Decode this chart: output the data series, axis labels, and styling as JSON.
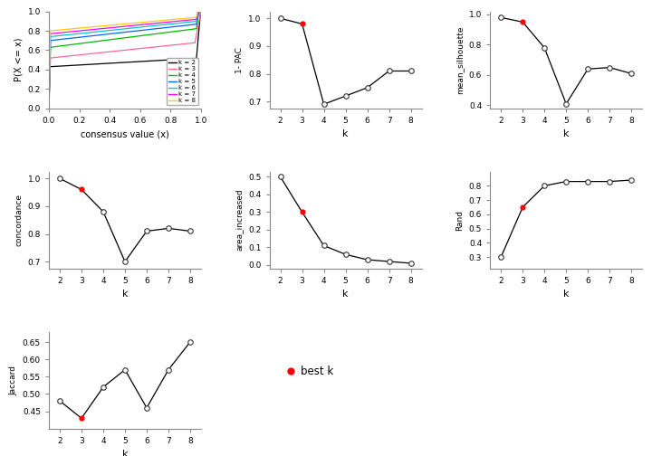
{
  "k_values": [
    2,
    3,
    4,
    5,
    6,
    7,
    8
  ],
  "best_k": 3,
  "pac_1minus": [
    1.0,
    0.98,
    0.69,
    0.72,
    0.75,
    0.81,
    0.81
  ],
  "mean_silhouette": [
    0.98,
    0.95,
    0.78,
    0.41,
    0.64,
    0.65,
    0.61
  ],
  "concordance": [
    1.0,
    0.96,
    0.88,
    0.7,
    0.81,
    0.82,
    0.81
  ],
  "area_increased": [
    0.5,
    0.3,
    0.11,
    0.06,
    0.03,
    0.02,
    0.01
  ],
  "rand": [
    0.3,
    0.65,
    0.8,
    0.83,
    0.83,
    0.83,
    0.84
  ],
  "jaccard": [
    0.48,
    0.43,
    0.52,
    0.57,
    0.46,
    0.57,
    0.65
  ],
  "ecdf_colors": [
    "#000000",
    "#ff6699",
    "#00bb00",
    "#0066ff",
    "#00cccc",
    "#ff00ff",
    "#ffcc00"
  ],
  "ecdf_labels": [
    "k = 2",
    "k = 3",
    "k = 4",
    "k = 5",
    "k = 6",
    "k = 7",
    "k = 8"
  ],
  "fig_background": "#ffffff",
  "axis_color": "#888888"
}
